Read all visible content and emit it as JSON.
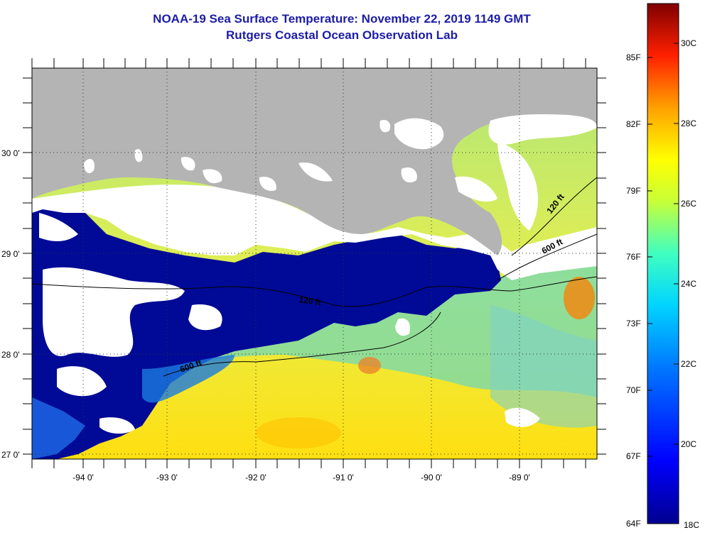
{
  "title": "NOAA-19 Sea Surface Temperature:  November 22, 2019 1149 GMT",
  "subtitle": "Rutgers Coastal Ocean Observation Lab",
  "lat_labels": [
    "30 0'",
    "29 0'",
    "28 0'",
    "27 0'"
  ],
  "lon_labels": [
    "-94 0'",
    "-93 0'",
    "-92 0'",
    "-91 0'",
    "-90 0'",
    "-89 0'"
  ],
  "contour_labels": {
    "c120_east": "120 ft",
    "c600_east": "600 ft",
    "c120_mid": "120 ft",
    "c600_west": "600 ft"
  },
  "colorbar": {
    "fahrenheit": [
      "85F",
      "82F",
      "79F",
      "76F",
      "73F",
      "70F",
      "67F",
      "64F"
    ],
    "celsius": [
      "30C",
      "28C",
      "26C",
      "24C",
      "22C",
      "20C",
      "18C"
    ]
  },
  "colors": {
    "land": "#b4b4b4",
    "cloud": "#ffffff",
    "cold": "#000a96",
    "warm": "#ffe600",
    "title": "#1c1ca8"
  }
}
